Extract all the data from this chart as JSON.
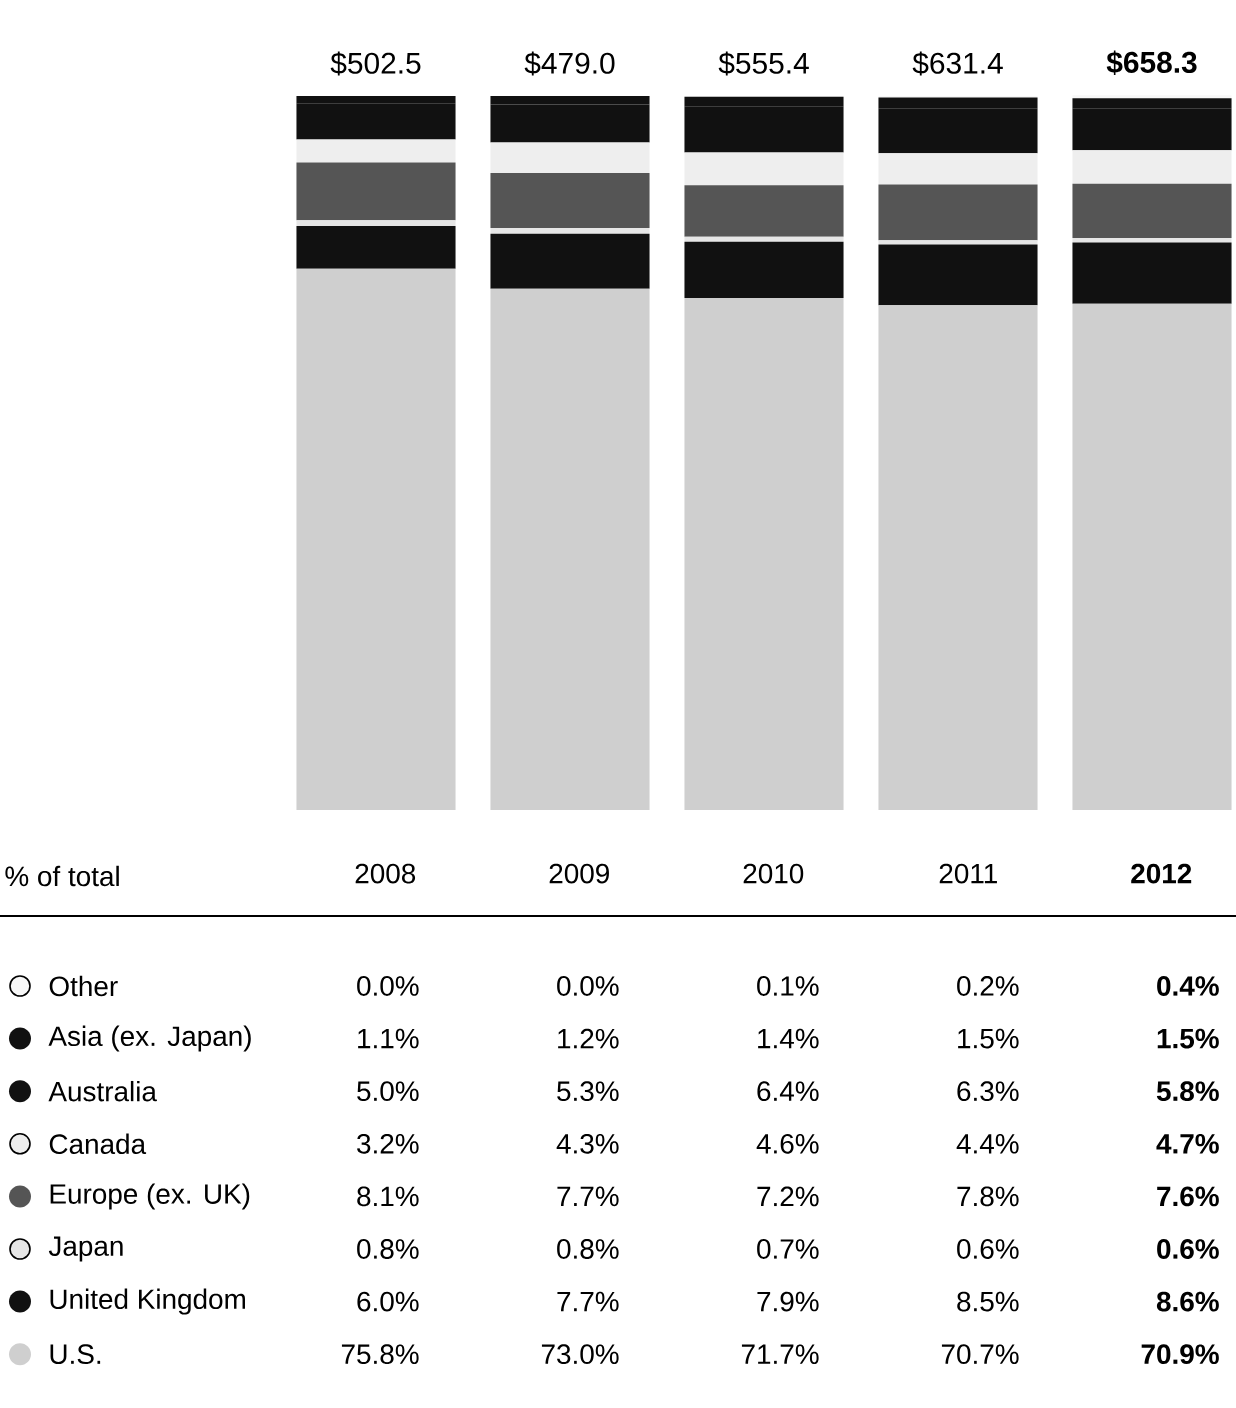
{
  "chart_data": {
    "type": "bar",
    "stacked": true,
    "data_labels": true,
    "legend": "bottom",
    "legend_title": "% of total",
    "categories": [
      "2008",
      "2009",
      "2010",
      "2011",
      "**2012**"
    ],
    "ylim": [
      0,
      100
    ],
    "annotations": [
      "$502.5",
      "$479.0",
      "$555.4",
      "$631.4",
      "**$658.3**"
    ],
    "series": [
      {
        "name": "U.S.",
        "color": "#cfcfcf",
        "values": [
          75.8,
          73.0,
          71.7,
          70.7,
          70.9
        ],
        "value_labels": [
          "75.8%",
          "73.0%",
          "71.7%",
          "70.7%",
          "**70.9%**"
        ]
      },
      {
        "name": "United Kingdom",
        "color": "#111111",
        "values": [
          6.0,
          7.7,
          7.9,
          8.5,
          8.6
        ],
        "value_labels": [
          "6.0%",
          "7.7%",
          "7.9%",
          "8.5%",
          "**8.6%**"
        ]
      },
      {
        "name": "Japan",
        "color": "#e6e6e6",
        "values": [
          0.8,
          0.8,
          0.7,
          0.6,
          0.6
        ],
        "value_labels": [
          "0.8%",
          "0.8%",
          "0.7%",
          "0.6%",
          "**0.6%**"
        ]
      },
      {
        "name": "Europe (ex. UK)",
        "color": "#555555",
        "values": [
          8.1,
          7.7,
          7.2,
          7.8,
          7.6
        ],
        "value_labels": [
          "8.1%",
          "7.7%",
          "7.2%",
          "7.8%",
          "**7.6%**"
        ]
      },
      {
        "name": "Canada",
        "color": "#eeeeee",
        "values": [
          3.2,
          4.3,
          4.6,
          4.4,
          4.7
        ],
        "value_labels": [
          "3.2%",
          "4.3%",
          "4.6%",
          "4.4%",
          "**4.7%**"
        ]
      },
      {
        "name": "Australia",
        "color": "#111111",
        "values": [
          5.0,
          5.3,
          6.4,
          6.3,
          5.8
        ],
        "value_labels": [
          "5.0%",
          "5.3%",
          "6.4%",
          "6.3%",
          "**5.8%**"
        ]
      },
      {
        "name": "Asia (ex. Japan)",
        "color": "#111111",
        "values": [
          1.1,
          1.2,
          1.4,
          1.5,
          1.5
        ],
        "value_labels": [
          "1.1%",
          "1.2%",
          "1.4%",
          "1.5%",
          "**1.5%**"
        ]
      },
      {
        "name": "Other",
        "color": "#f7f7f7",
        "values": [
          0.0,
          0.0,
          0.1,
          0.2,
          0.4
        ],
        "value_labels": [
          "0.0%",
          "0.0%",
          "0.1%",
          "0.2%",
          "**0.4%**"
        ]
      }
    ]
  }
}
